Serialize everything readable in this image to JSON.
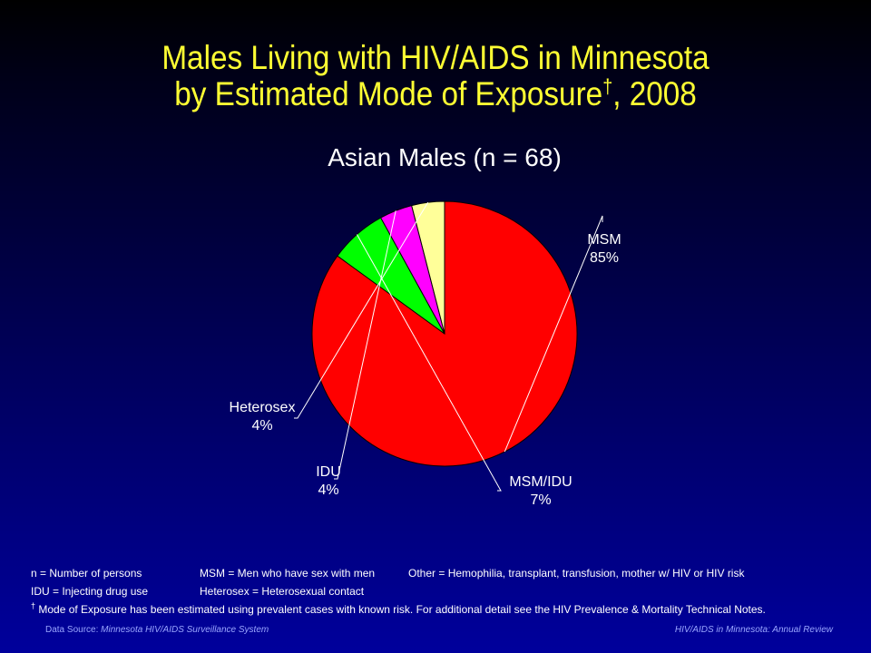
{
  "title_line1": "Males Living with HIV/AIDS in Minnesota",
  "title_line2": "by Estimated Mode of Exposure",
  "title_dagger": "†",
  "title_year": ", 2008",
  "chart_data": {
    "type": "pie",
    "title": "Asian Males (n = 68)",
    "slices": [
      {
        "label": "MSM",
        "percent_label": "85%",
        "value": 85,
        "color": "#ff0000"
      },
      {
        "label": "MSM/IDU",
        "percent_label": "7%",
        "value": 7,
        "color": "#00ff00"
      },
      {
        "label": "IDU",
        "percent_label": "4%",
        "value": 4,
        "color": "#ff00ff"
      },
      {
        "label": "Heterosex",
        "percent_label": "4%",
        "value": 4,
        "color": "#ffff99"
      }
    ]
  },
  "footnotes": {
    "n_def": "n = Number of persons",
    "msm_def": "MSM = Men who have sex with men",
    "other_def": "Other = Hemophilia, transplant, transfusion, mother w/ HIV or HIV risk",
    "idu_def": "IDU = Injecting drug use",
    "hetero_def": "Heterosex = Heterosexual contact",
    "dagger": "†",
    "mode_note": "Mode of Exposure has been estimated using prevalent cases with known risk. For additional detail see the HIV Prevalence & Mortality Technical Notes."
  },
  "source": {
    "prefix": "Data Source:",
    "name": "Minnesota HIV/AIDS Surveillance System",
    "right": "HIV/AIDS in Minnesota: Annual Review"
  }
}
